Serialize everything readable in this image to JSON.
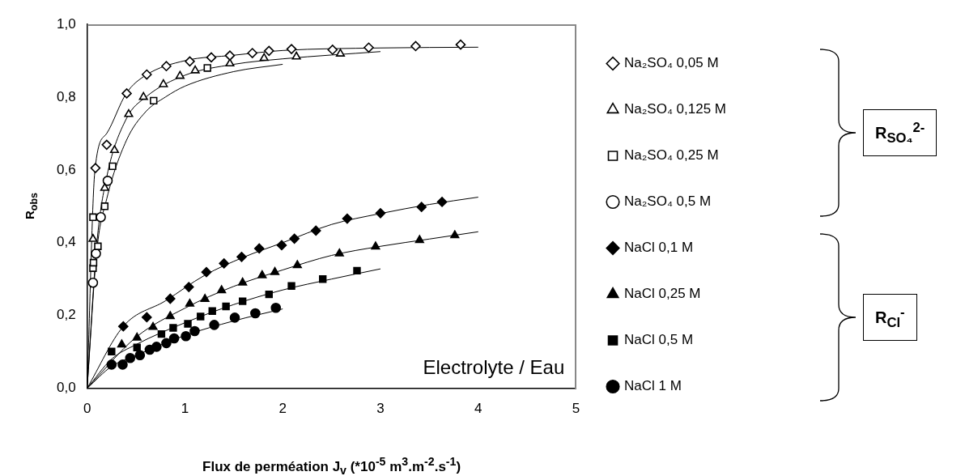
{
  "chart_data": {
    "type": "scatter",
    "xlabel": "Flux de perméation J$_{v}$ (*10$^{-5}$ m$^{3}$.m$^{-2}$.s$^{-1}$)",
    "ylabel": "R$_{obs}$",
    "xlim": [
      0,
      5
    ],
    "xticks": [
      0,
      1,
      2,
      3,
      4,
      5
    ],
    "ylim": [
      0,
      1
    ],
    "yticks": [
      {
        "value": 0,
        "label": "0,0"
      },
      {
        "value": 0.2,
        "label": "0,2"
      },
      {
        "value": 0.4,
        "label": "0,4"
      },
      {
        "value": 0.6,
        "label": "0,6"
      },
      {
        "value": 0.8,
        "label": "0,8"
      },
      {
        "value": 1,
        "label": "1,0"
      }
    ],
    "grid": false,
    "legend": "right",
    "annotations": [
      "Electrolyte / Eau",
      "R$_{SO₄}$$^{2-}$",
      "R$_{Cl}$$^{-}$"
    ],
    "series": [
      {
        "name": "Na₂SO₄ 0,05 M",
        "color": "#ffffff",
        "marker": "diamond",
        "x": [
          0.085,
          0.2,
          0.405,
          0.61,
          0.81,
          1.05,
          1.27,
          1.46,
          1.69,
          1.86,
          2.09,
          2.51,
          2.88,
          3.36,
          3.82
        ],
        "values": [
          0.605,
          0.669,
          0.81,
          0.862,
          0.885,
          0.898,
          0.909,
          0.914,
          0.921,
          0.927,
          0.932,
          0.93,
          0.936,
          0.94,
          0.944
        ]
      },
      {
        "name": "Na₂SO₄ 0,125 M",
        "color": "#ffffff",
        "marker": "triangle",
        "x": [
          0.06,
          0.18,
          0.28,
          0.425,
          0.576,
          0.78,
          0.95,
          1.105,
          1.46,
          1.81,
          2.14,
          2.59
        ],
        "values": [
          0.41,
          0.55,
          0.654,
          0.753,
          0.8,
          0.835,
          0.858,
          0.873,
          0.892,
          0.907,
          0.911,
          0.919
        ]
      },
      {
        "name": "Na₂SO₄ 0,25 M",
        "color": "#ffffff",
        "marker": "square",
        "x": [
          0.06,
          0.065,
          0.06,
          0.11,
          0.18,
          0.26,
          0.68,
          1.23
        ],
        "values": [
          0.33,
          0.345,
          0.47,
          0.39,
          0.5,
          0.61,
          0.79,
          0.88
        ]
      },
      {
        "name": "Na₂SO₄ 0,5 M",
        "color": "#ffffff",
        "marker": "circle",
        "x": [
          0.06,
          0.09,
          0.14,
          0.21
        ],
        "values": [
          0.29,
          0.37,
          0.47,
          0.57
        ]
      },
      {
        "name": "NaCl 0,1 M",
        "color": "#000000",
        "marker": "diamond",
        "x": [
          0.37,
          0.61,
          0.85,
          1.04,
          1.22,
          1.4,
          1.58,
          1.76,
          1.99,
          2.12,
          2.34,
          2.66,
          3.0,
          3.42,
          3.63
        ],
        "values": [
          0.17,
          0.195,
          0.246,
          0.278,
          0.319,
          0.343,
          0.361,
          0.384,
          0.393,
          0.411,
          0.433,
          0.466,
          0.481,
          0.498,
          0.512
        ]
      },
      {
        "name": "NaCl 0,25 M",
        "color": "#000000",
        "marker": "triangle",
        "x": [
          0.354,
          0.51,
          0.674,
          0.85,
          1.05,
          1.205,
          1.375,
          1.59,
          1.79,
          1.92,
          2.15,
          2.58,
          2.95,
          3.4,
          3.76
        ],
        "values": [
          0.12,
          0.139,
          0.168,
          0.198,
          0.232,
          0.245,
          0.269,
          0.29,
          0.31,
          0.319,
          0.338,
          0.37,
          0.389,
          0.407,
          0.42
        ]
      },
      {
        "name": "NaCl 0,5 M",
        "color": "#000000",
        "marker": "square",
        "x": [
          0.25,
          0.51,
          0.76,
          0.88,
          1.03,
          1.16,
          1.28,
          1.42,
          1.59,
          1.86,
          2.09,
          2.41,
          2.76
        ],
        "values": [
          0.101,
          0.112,
          0.149,
          0.166,
          0.177,
          0.197,
          0.212,
          0.225,
          0.239,
          0.258,
          0.281,
          0.3,
          0.323
        ]
      },
      {
        "name": "NaCl 1 M",
        "color": "#000000",
        "marker": "circle",
        "x": [
          0.25,
          0.363,
          0.44,
          0.54,
          0.64,
          0.71,
          0.81,
          0.89,
          1.01,
          1.1,
          1.3,
          1.51,
          1.72,
          1.93
        ],
        "values": [
          0.065,
          0.065,
          0.083,
          0.091,
          0.106,
          0.114,
          0.124,
          0.137,
          0.143,
          0.157,
          0.174,
          0.194,
          0.206,
          0.221
        ]
      },
      {
        "type": "line",
        "color": "#000000",
        "marker": "none",
        "x": [
          0,
          0.08,
          0.2,
          0.4,
          0.6,
          1,
          1.5,
          2,
          3,
          4
        ],
        "values": [
          0,
          0.6,
          0.7,
          0.81,
          0.86,
          0.9,
          0.915,
          0.928,
          0.935,
          0.937
        ]
      },
      {
        "type": "line",
        "color": "#000000",
        "marker": "none",
        "x": [
          0,
          0.1,
          0.2,
          0.4,
          0.6,
          1,
          1.5,
          2,
          3
        ],
        "values": [
          0,
          0.4,
          0.58,
          0.74,
          0.8,
          0.86,
          0.89,
          0.905,
          0.925
        ]
      },
      {
        "type": "line",
        "color": "#000000",
        "marker": "none",
        "x": [
          0,
          0.1,
          0.2,
          0.4,
          0.6,
          0.8,
          1,
          1.5,
          2
        ],
        "values": [
          0,
          0.38,
          0.52,
          0.68,
          0.76,
          0.8,
          0.83,
          0.87,
          0.89
        ]
      },
      {
        "type": "line",
        "color": "#000000",
        "marker": "none",
        "x": [
          0,
          0.37,
          0.8,
          1.2,
          1.6,
          2,
          2.5,
          3,
          3.5,
          4
        ],
        "values": [
          0,
          0.17,
          0.24,
          0.31,
          0.36,
          0.4,
          0.45,
          0.48,
          0.505,
          0.525
        ]
      },
      {
        "type": "line",
        "color": "#000000",
        "marker": "none",
        "x": [
          0,
          0.5,
          1,
          1.5,
          2,
          2.5,
          3,
          3.5,
          4
        ],
        "values": [
          0,
          0.14,
          0.22,
          0.28,
          0.325,
          0.365,
          0.39,
          0.41,
          0.43
        ]
      },
      {
        "type": "line",
        "color": "#000000",
        "marker": "none",
        "x": [
          0,
          0.25,
          0.5,
          1,
          1.5,
          2,
          2.5,
          3
        ],
        "values": [
          0,
          0.08,
          0.12,
          0.18,
          0.23,
          0.27,
          0.3,
          0.328
        ]
      },
      {
        "type": "line",
        "color": "#000000",
        "marker": "none",
        "x": [
          0,
          0.25,
          0.5,
          1,
          1.5,
          2
        ],
        "values": [
          0,
          0.06,
          0.09,
          0.145,
          0.185,
          0.218
        ]
      }
    ]
  }
}
